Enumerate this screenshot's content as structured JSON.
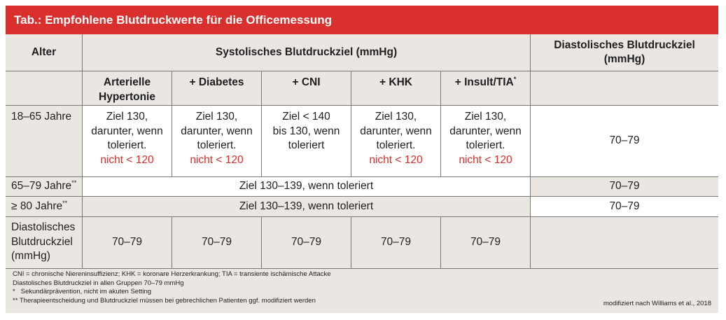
{
  "title": "Tab.: Empfohlene Blutdruckwerte für die Officemessung",
  "headers": {
    "alter": "Alter",
    "systolic": "Systolisches Blutdruckziel (mmHg)",
    "diastolic_line1": "Diastolisches Blutdruckziel",
    "diastolic_line2": "(mmHg)",
    "sub": [
      {
        "line1": "Arterielle",
        "line2": "Hypertonie"
      },
      {
        "line1": "+ Diabetes"
      },
      {
        "line1": "+ CNI"
      },
      {
        "line1": "+ KHK"
      },
      {
        "line1": "+ Insult/TIA",
        "sup": "*"
      }
    ]
  },
  "rows": {
    "r1": {
      "label": "18–65 Jahre",
      "cells": [
        {
          "l1": "Ziel 130,",
          "l2": "darunter, wenn",
          "l3": "toleriert.",
          "red": "nicht < 120"
        },
        {
          "l1": "Ziel 130,",
          "l2": "darunter, wenn",
          "l3": "toleriert.",
          "red": "nicht < 120"
        },
        {
          "l1": "Ziel < 140",
          "l2": "bis 130, wenn",
          "l3": "toleriert"
        },
        {
          "l1": "Ziel 130,",
          "l2": "darunter, wenn",
          "l3": "toleriert.",
          "red": "nicht < 120"
        },
        {
          "l1": "Ziel 130,",
          "l2": "darunter, wenn",
          "l3": "toleriert.",
          "red": "nicht < 120"
        }
      ],
      "diastolic": "70–79"
    },
    "r2": {
      "label": "65–79 Jahre",
      "sup": "**",
      "span": "Ziel 130–139, wenn toleriert",
      "diastolic": "70–79"
    },
    "r3": {
      "label": "≥ 80 Jahre",
      "sup": "**",
      "span": "Ziel 130–139, wenn toleriert",
      "diastolic": "70–79"
    },
    "r4": {
      "label_l1": "Diastolisches",
      "label_l2": "Blutdruckziel",
      "label_l3": "(mmHg)",
      "cells": [
        "70–79",
        "70–79",
        "70–79",
        "70–79",
        "70–79"
      ]
    }
  },
  "footnotes": [
    "CNI = chronische Niereninsuffizienz; KHK = koronare Herzerkrankung; TIA = transiente ischämische Attacke",
    "Diastolisches Blutdruckziel in allen Gruppen 70–79 mmHg",
    "*   Sekundärprävention, nicht im akuten Setting",
    "** Therapieentscheidung und Blutdruckziel müssen bei gebrechlichen Patienten ggf. modifiziert werden"
  ],
  "source": "modifiziert nach Williams et al., 2018",
  "colors": {
    "accent": "#d9302d",
    "panel": "#eae6e2",
    "grid": "#7b7876"
  }
}
